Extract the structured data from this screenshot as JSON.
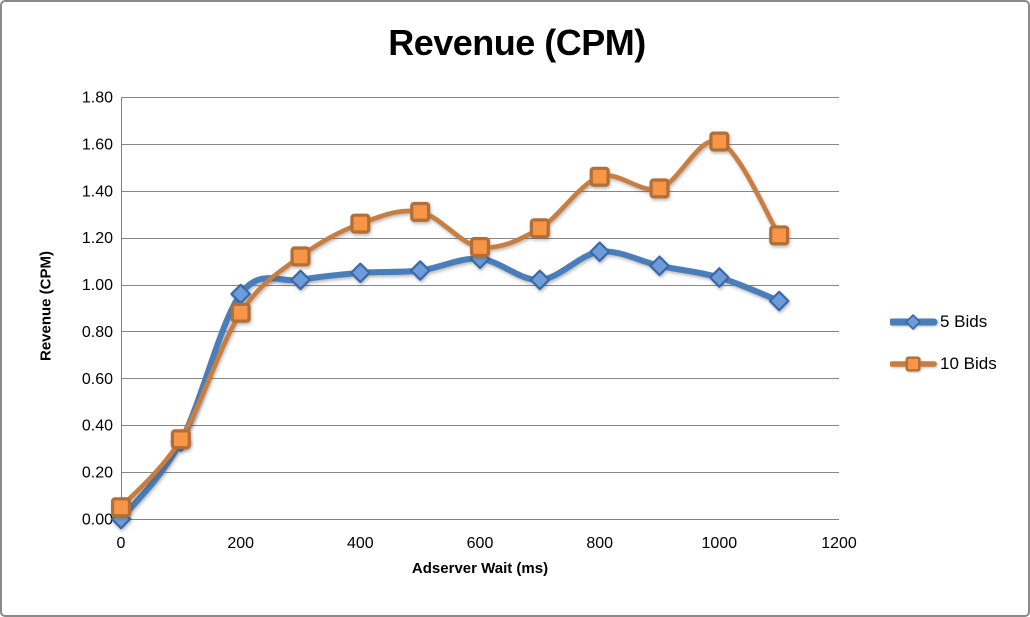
{
  "title": "Revenue (CPM)",
  "chart_data": {
    "type": "line",
    "title": "Revenue (CPM)",
    "xlabel": "Adserver Wait (ms)",
    "ylabel": "Revenue (CPM)",
    "smoothed": true,
    "grid": "horizontal",
    "legend_position": "right",
    "x": [
      0,
      100,
      200,
      300,
      400,
      500,
      600,
      700,
      800,
      900,
      1000,
      1100
    ],
    "series": [
      {
        "name": "5 Bids",
        "marker": "diamond",
        "line_color": "#4A7EBB",
        "marker_fill": "#6D9CD9",
        "marker_stroke": "#3A68A8",
        "line_width": 6,
        "values": [
          0.0,
          0.33,
          0.96,
          1.02,
          1.05,
          1.06,
          1.11,
          1.02,
          1.14,
          1.08,
          1.03,
          0.93
        ]
      },
      {
        "name": "10 Bids",
        "marker": "square",
        "line_color": "#C87D41",
        "marker_fill": "#F79646",
        "marker_stroke": "#B26E35",
        "line_width": 4.6,
        "values": [
          0.05,
          0.34,
          0.88,
          1.12,
          1.26,
          1.31,
          1.16,
          1.24,
          1.46,
          1.41,
          1.61,
          1.21
        ]
      }
    ],
    "xlim": [
      0,
      1200
    ],
    "ylim": [
      0,
      1.8
    ],
    "x_ticks": [
      0,
      200,
      400,
      600,
      800,
      1000,
      1200
    ],
    "x_tick_labels": [
      "0",
      "200",
      "400",
      "600",
      "800",
      "1000",
      "1200"
    ],
    "y_ticks": [
      0,
      0.2,
      0.4,
      0.6,
      0.8,
      1.0,
      1.2,
      1.4,
      1.6,
      1.8
    ],
    "y_tick_labels": [
      "0.00",
      "0.20",
      "0.40",
      "0.60",
      "0.80",
      "1.00",
      "1.20",
      "1.40",
      "1.60",
      "1.80"
    ]
  },
  "colors": {
    "grid": "#868686",
    "axis": "#808080",
    "text": "#000000",
    "frame_border": "#8A8A8A",
    "background": "#FFFFFF"
  }
}
